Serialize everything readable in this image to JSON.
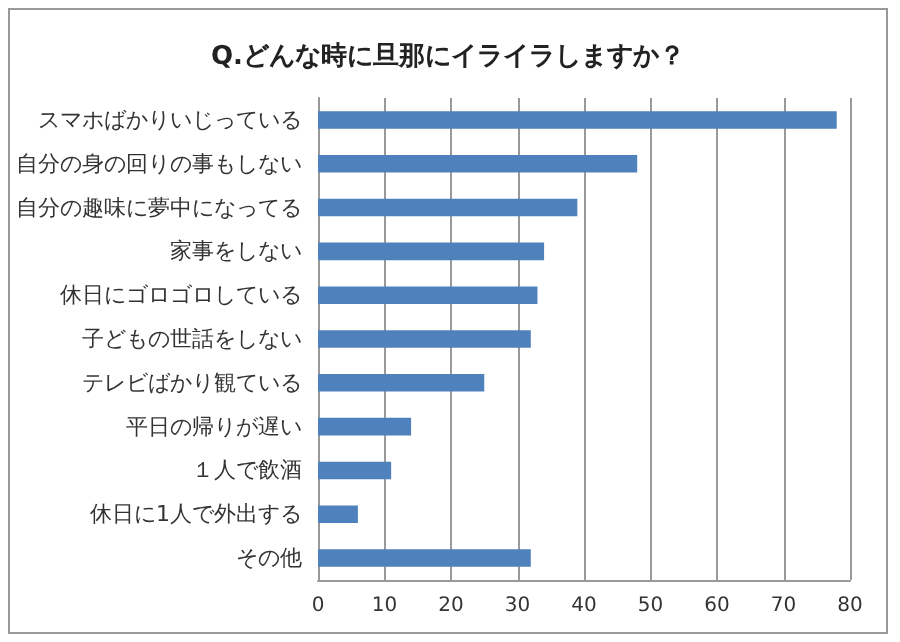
{
  "chart_data": {
    "type": "bar",
    "orientation": "horizontal",
    "title": "Q.どんな時に旦那にイライラしますか？",
    "categories": [
      "スマホばかりいじっている",
      "自分の身の回りの事もしない",
      "自分の趣味に夢中になってる",
      "家事をしない",
      "休日にゴロゴロしている",
      "子どもの世話をしない",
      "テレビばかり観ている",
      "平日の帰りが遅い",
      "１人で飲酒",
      "休日に1人で外出する",
      "その他"
    ],
    "values": [
      78,
      48,
      39,
      34,
      33,
      32,
      25,
      14,
      11,
      6,
      32
    ],
    "color": "#4f81bd",
    "xlim": [
      0,
      80
    ],
    "xticks": [
      0,
      10,
      20,
      30,
      40,
      50,
      60,
      70,
      80
    ],
    "grid": "x"
  }
}
